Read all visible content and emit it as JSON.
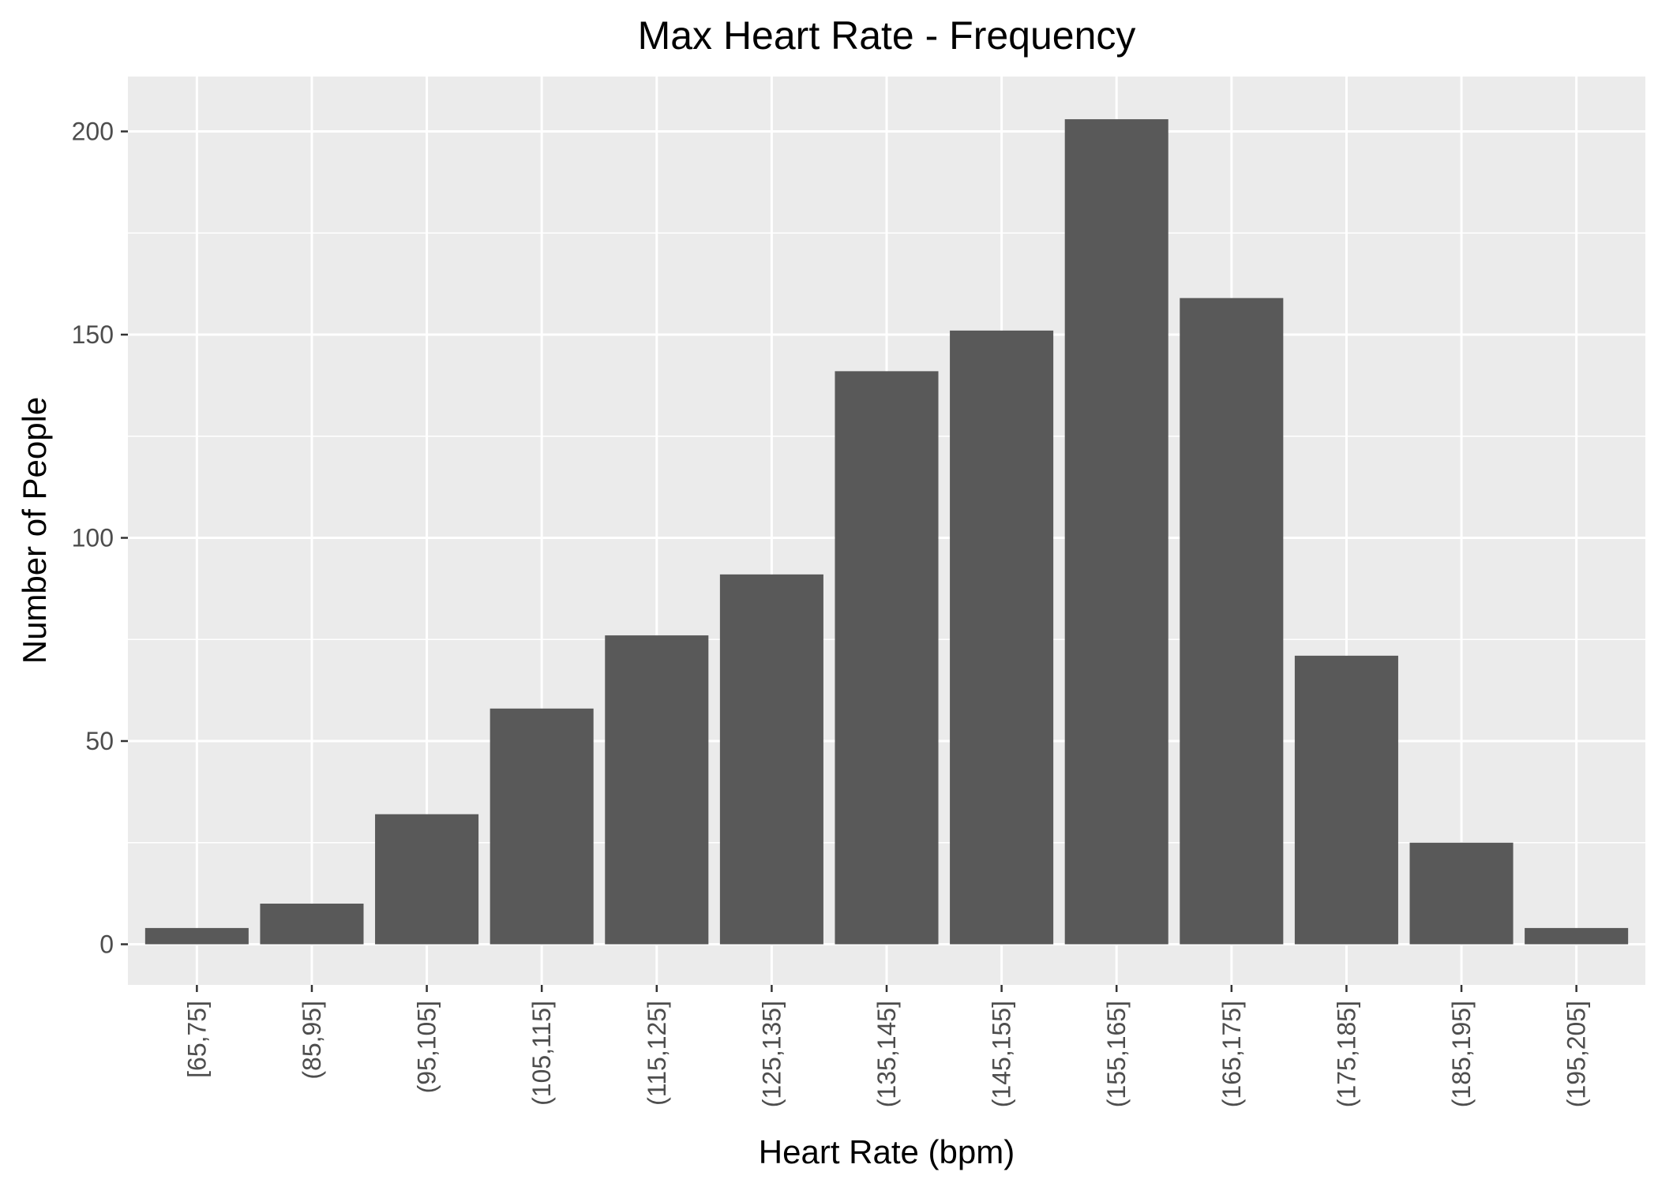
{
  "chart_data": {
    "type": "bar",
    "title": "Max Heart Rate - Frequency",
    "xlabel": "Heart Rate (bpm)",
    "ylabel": "Number of People",
    "categories": [
      "[65,75]",
      "(85,95]",
      "(95,105]",
      "(105,115]",
      "(115,125]",
      "(125,135]",
      "(135,145]",
      "(145,155]",
      "(155,165]",
      "(165,175]",
      "(175,185]",
      "(185,195]",
      "(195,205]"
    ],
    "values": [
      4,
      10,
      32,
      58,
      76,
      91,
      141,
      151,
      203,
      159,
      71,
      25,
      4
    ],
    "ylim": [
      -10,
      213.5
    ],
    "yticks": [
      0,
      50,
      100,
      150,
      200
    ],
    "yticks_minor": [
      25,
      75,
      125,
      175
    ],
    "grid": true,
    "legend": "none",
    "colors": {
      "bar": "#595959",
      "panel": "#ebebeb",
      "grid": "#ffffff",
      "tick": "#333333"
    }
  }
}
